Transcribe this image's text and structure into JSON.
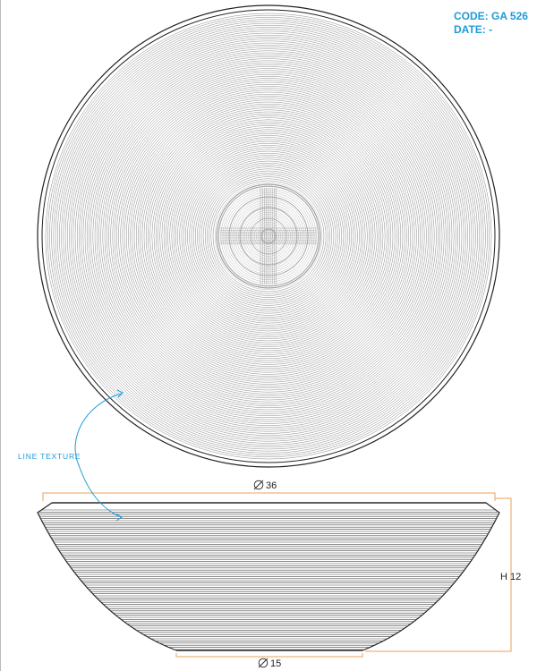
{
  "header": {
    "code_line": "CODE: GA 526",
    "date_line": "DATE: -"
  },
  "callout": {
    "label": "LINE TEXTURE"
  },
  "dimensions": {
    "top_diameter": "36",
    "base_diameter": "15",
    "height": "H 12",
    "diameter_symbol": "⌀"
  },
  "colors": {
    "accent": "#1e9bd7",
    "dimension_line": "#e8a25a",
    "linework": "#222222",
    "texture": "#8a8a8a"
  },
  "icons": {
    "diameter": "diameter-symbol-icon",
    "callout_arrow": "curved-arrow-icon"
  }
}
